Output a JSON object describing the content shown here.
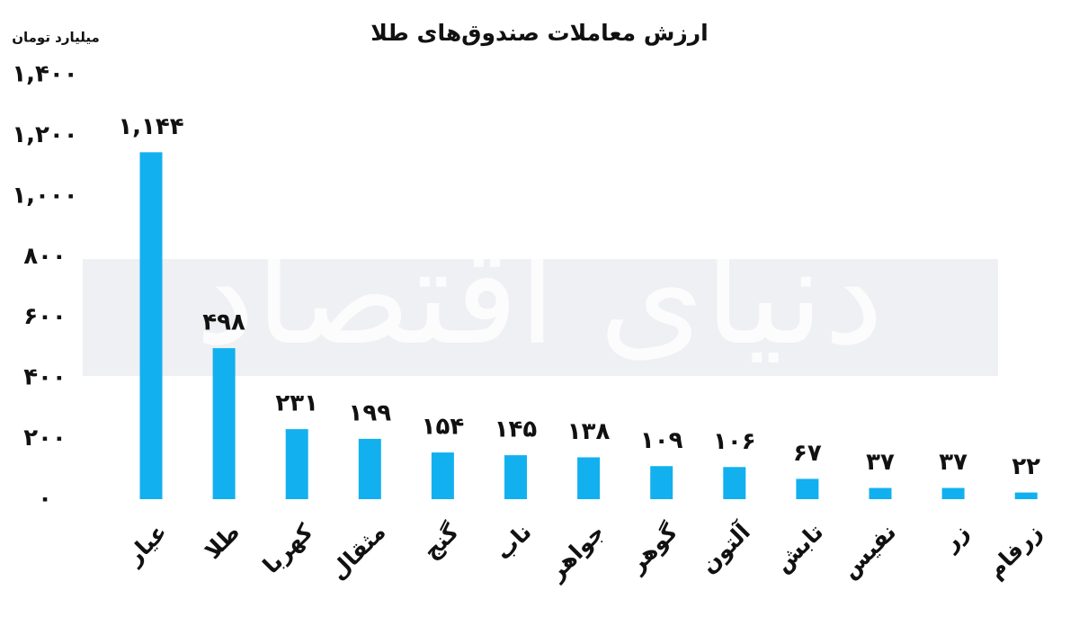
{
  "chart_data": {
    "type": "bar",
    "title": "ارزش معاملات صندوق‌های طلا",
    "y_label": "میلیارد تومان",
    "watermark": "دنیای اقتصاد",
    "categories": [
      "عیار",
      "طلا",
      "کهربا",
      "مثقال",
      "گنج",
      "ناب",
      "جواهر",
      "گوهر",
      "آلتون",
      "تابش",
      "نفیس",
      "زر",
      "زرفام"
    ],
    "values": [
      1144,
      498,
      231,
      199,
      154,
      145,
      138,
      109,
      106,
      67,
      37,
      37,
      22
    ],
    "value_labels": [
      "۱,۱۴۴",
      "۴۹۸",
      "۲۳۱",
      "۱۹۹",
      "۱۵۴",
      "۱۴۵",
      "۱۳۸",
      "۱۰۹",
      "۱۰۶",
      "۶۷",
      "۳۷",
      "۳۷",
      "۲۲"
    ],
    "color": "#12b0ef",
    "ylim": [
      0,
      1400
    ],
    "yticks": [
      {
        "value": 0,
        "label": "۰"
      },
      {
        "value": 200,
        "label": "۲۰۰"
      },
      {
        "value": 400,
        "label": "۴۰۰"
      },
      {
        "value": 600,
        "label": "۶۰۰"
      },
      {
        "value": 800,
        "label": "۸۰۰"
      },
      {
        "value": 1000,
        "label": "۱,۰۰۰"
      },
      {
        "value": 1200,
        "label": "۱,۲۰۰"
      },
      {
        "value": 1400,
        "label": "۱,۴۰۰"
      }
    ],
    "grid": false
  }
}
